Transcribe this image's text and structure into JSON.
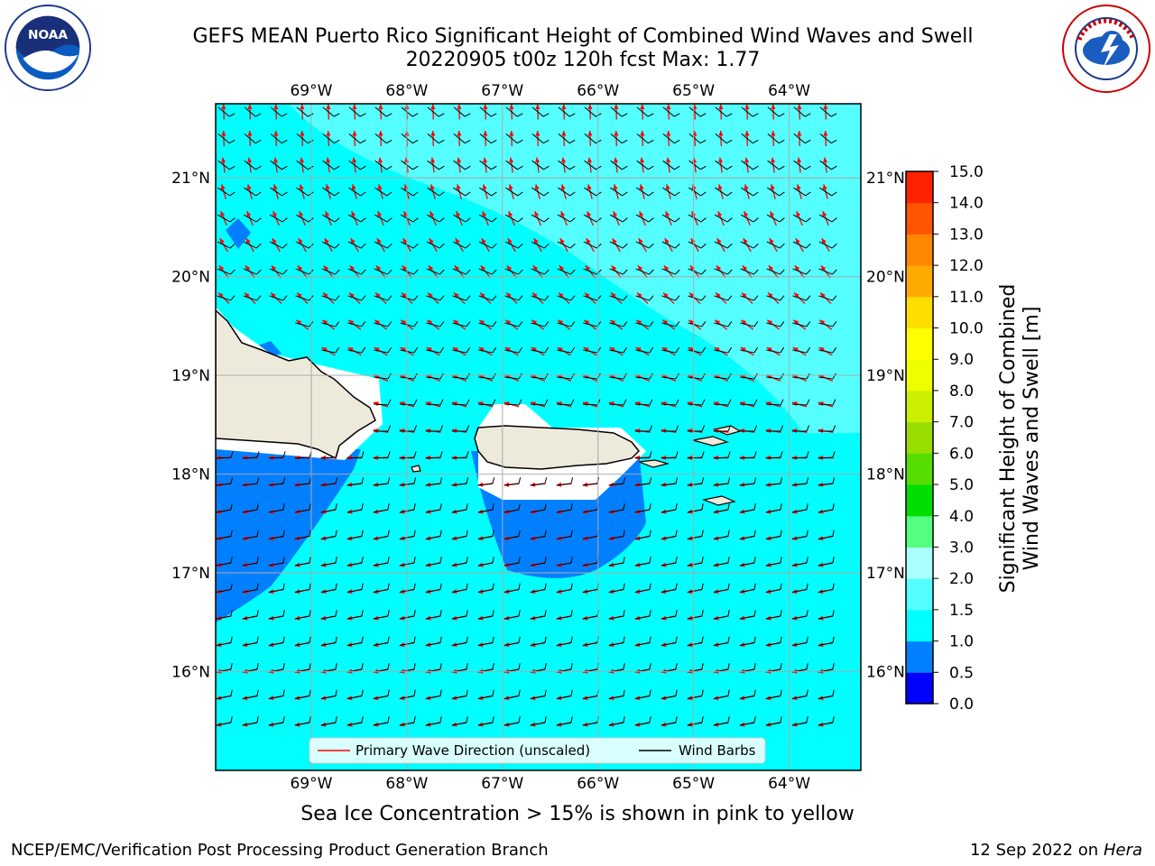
{
  "header": {
    "title_line1": "GEFS MEAN Puerto Rico Significant Height of Combined Wind Waves and Swell",
    "title_line2": "20220905 t00z 120h fcst   Max: 1.77"
  },
  "logos": {
    "left": {
      "name": "noaa-logo",
      "text": "NOAA",
      "ring_text": "NATIONAL OCEANIC AND ATMOSPHERIC ADMINISTRATION · U.S. DEPARTMENT OF COMMERCE"
    },
    "right": {
      "name": "nws-logo",
      "ring_text": "NATIONAL WEATHER SERVICE"
    }
  },
  "map": {
    "lon_range": [
      -70.0,
      -63.25
    ],
    "lat_range": [
      15.0,
      21.75
    ],
    "lon_ticks": [
      "69°W",
      "68°W",
      "67°W",
      "66°W",
      "65°W",
      "64°W"
    ],
    "lat_ticks": [
      "21°N",
      "20°N",
      "19°N",
      "18°N",
      "17°N",
      "16°N"
    ],
    "legend": {
      "wave": "Primary Wave Direction (unscaled)",
      "wind": "Wind Barbs"
    },
    "colors": {
      "ocean_fill": "#00ffff",
      "swell_band": "#55ffff",
      "shallow": "#0080ff",
      "land": "#eeeadb",
      "wave_arrow": "#ff0000",
      "wind_barb": "#000000"
    }
  },
  "colorbar": {
    "label_line1": "Significant Height of Combined",
    "label_line2": "Wind Waves and Swell [m]",
    "ticks": [
      "0.0",
      "0.5",
      "1.0",
      "1.5",
      "2.0",
      "3.0",
      "4.0",
      "5.0",
      "6.0",
      "7.0",
      "8.0",
      "9.0",
      "10.0",
      "11.0",
      "12.0",
      "13.0",
      "14.0",
      "15.0"
    ],
    "colors": [
      "#0000ff",
      "#0080ff",
      "#00ffff",
      "#55ffff",
      "#aaffff",
      "#55ff7f",
      "#00dd00",
      "#55dd00",
      "#99dd00",
      "#ccee00",
      "#eeff00",
      "#ffff00",
      "#ffdd00",
      "#ffaa00",
      "#ff8800",
      "#ff5500",
      "#ff2200"
    ]
  },
  "footer": {
    "note": "Sea Ice Concentration > 15% is shown in pink to yellow",
    "credit": "NCEP/EMC/Verification Post Processing Product Generation Branch",
    "date": "12 Sep 2022 on",
    "machine": "Hera"
  }
}
